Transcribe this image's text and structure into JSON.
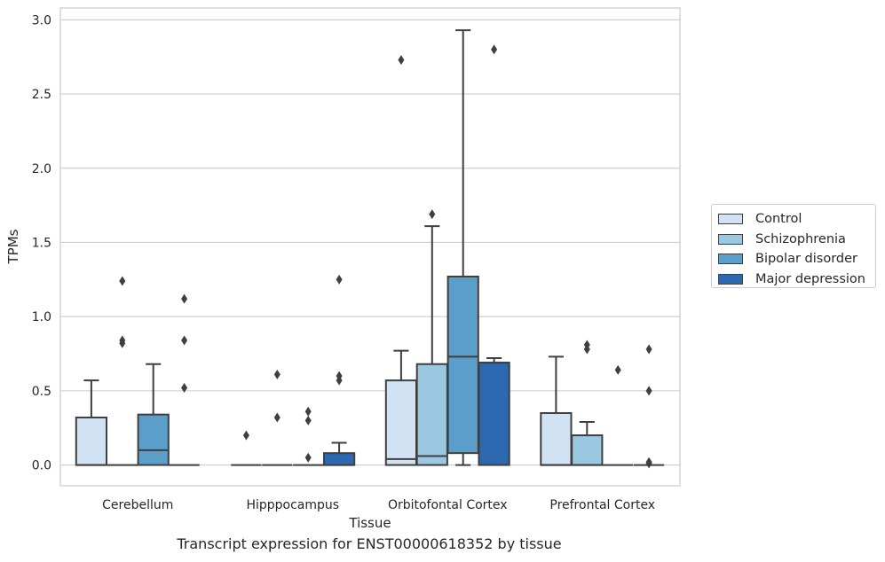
{
  "chart_data": {
    "type": "box",
    "title": "Transcript expression for ENST00000618352 by tissue",
    "xlabel": "Tissue",
    "ylabel": "TPMs",
    "ylim": [
      -0.14,
      3.08
    ],
    "yticks": [
      0.0,
      0.5,
      1.0,
      1.5,
      2.0,
      2.5,
      3.0
    ],
    "grid": "y",
    "legend_position": "right",
    "categories": [
      "Cerebellum",
      "Hipppocampus",
      "Orbitofontal Cortex",
      "Prefrontal Cortex"
    ],
    "series": [
      {
        "name": "Control",
        "color": "#d1e2f2",
        "boxes": [
          {
            "q1": 0.0,
            "median": 0.0,
            "q3": 0.32,
            "whisker_low": 0.0,
            "whisker_high": 0.57,
            "outliers": []
          },
          {
            "q1": 0.0,
            "median": 0.0,
            "q3": 0.0,
            "whisker_low": 0.0,
            "whisker_high": 0.0,
            "outliers": [
              0.2
            ]
          },
          {
            "q1": 0.0,
            "median": 0.04,
            "q3": 0.57,
            "whisker_low": 0.0,
            "whisker_high": 0.77,
            "outliers": [
              2.73
            ]
          },
          {
            "q1": 0.0,
            "median": 0.0,
            "q3": 0.35,
            "whisker_low": 0.0,
            "whisker_high": 0.73,
            "outliers": []
          }
        ]
      },
      {
        "name": "Schizophrenia",
        "color": "#9ac8e0",
        "boxes": [
          {
            "q1": 0.0,
            "median": 0.0,
            "q3": 0.0,
            "whisker_low": 0.0,
            "whisker_high": 0.0,
            "outliers": [
              0.82,
              0.84,
              1.24
            ]
          },
          {
            "q1": 0.0,
            "median": 0.0,
            "q3": 0.0,
            "whisker_low": 0.0,
            "whisker_high": 0.0,
            "outliers": [
              0.32,
              0.61
            ]
          },
          {
            "q1": 0.0,
            "median": 0.06,
            "q3": 0.68,
            "whisker_low": 0.0,
            "whisker_high": 1.61,
            "outliers": [
              1.69
            ]
          },
          {
            "q1": 0.0,
            "median": 0.0,
            "q3": 0.2,
            "whisker_low": 0.0,
            "whisker_high": 0.29,
            "outliers": [
              0.78,
              0.81
            ]
          }
        ]
      },
      {
        "name": "Bipolar disorder",
        "color": "#5a9ec9",
        "boxes": [
          {
            "q1": 0.0,
            "median": 0.1,
            "q3": 0.34,
            "whisker_low": 0.0,
            "whisker_high": 0.68,
            "outliers": []
          },
          {
            "q1": 0.0,
            "median": 0.0,
            "q3": 0.0,
            "whisker_low": 0.0,
            "whisker_high": 0.0,
            "outliers": [
              0.05,
              0.3,
              0.36
            ]
          },
          {
            "q1": 0.08,
            "median": 0.73,
            "q3": 1.27,
            "whisker_low": 0.0,
            "whisker_high": 2.93,
            "outliers": []
          },
          {
            "q1": 0.0,
            "median": 0.0,
            "q3": 0.0,
            "whisker_low": 0.0,
            "whisker_high": 0.0,
            "outliers": [
              0.64
            ]
          }
        ]
      },
      {
        "name": "Major depression",
        "color": "#2c69b0",
        "boxes": [
          {
            "q1": 0.0,
            "median": 0.0,
            "q3": 0.0,
            "whisker_low": 0.0,
            "whisker_high": 0.0,
            "outliers": [
              0.52,
              0.84,
              1.12
            ]
          },
          {
            "q1": 0.0,
            "median": 0.0,
            "q3": 0.08,
            "whisker_low": 0.0,
            "whisker_high": 0.15,
            "outliers": [
              0.57,
              0.6,
              1.25
            ]
          },
          {
            "q1": 0.0,
            "median": 0.69,
            "q3": 0.69,
            "whisker_low": 0.0,
            "whisker_high": 0.72,
            "outliers": [
              2.8
            ]
          },
          {
            "q1": 0.0,
            "median": 0.0,
            "q3": 0.0,
            "whisker_low": 0.0,
            "whisker_high": 0.0,
            "outliers": [
              0.01,
              0.02,
              0.5,
              0.78
            ]
          }
        ]
      }
    ]
  }
}
